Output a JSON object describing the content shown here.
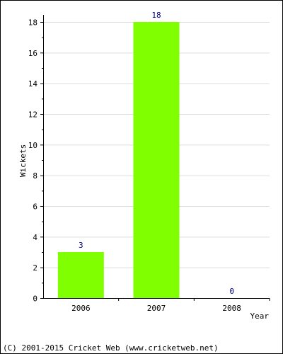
{
  "chart_data": {
    "type": "bar",
    "categories": [
      "2006",
      "2007",
      "2008"
    ],
    "values": [
      3,
      18,
      0
    ],
    "data_labels": [
      "3",
      "18",
      "0"
    ],
    "xlabel": "Year",
    "ylabel": "Wickets",
    "ylim": [
      0,
      18
    ],
    "yticks": [
      0,
      2,
      4,
      6,
      8,
      10,
      12,
      14,
      16,
      18
    ],
    "grid": true,
    "bar_color": "#80ff00",
    "data_label_color": "#000080",
    "grid_color": "#dddddd"
  },
  "footer": {
    "copyright": "(C) 2001-2015 Cricket Web (www.cricketweb.net)"
  }
}
